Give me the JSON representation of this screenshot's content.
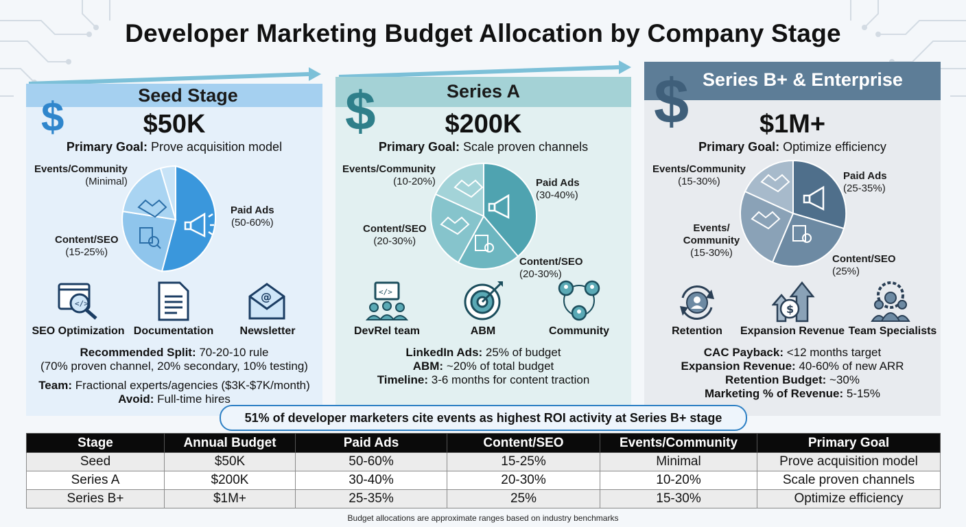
{
  "title": "Developer Marketing Budget Allocation by Company Stage",
  "colors": {
    "seed_pie": "#3a97dc",
    "seriesa_pie": "#4fa3b0",
    "seriesb_pie": "#4f6f8b",
    "callout_border": "#2c7fc4"
  },
  "panels": [
    {
      "stage": "Seed Stage",
      "budget": "$50K",
      "goal_label": "Primary Goal:",
      "goal_text": "Prove acquisition model",
      "pie_labels": [
        {
          "name": "Paid Ads",
          "range": "(50-60%)"
        },
        {
          "name": "Content/SEO",
          "range": "(15-25%)"
        },
        {
          "name": "Events/Community",
          "range": "(Minimal)"
        }
      ],
      "icons": [
        {
          "label": "SEO Optimization",
          "icon": "seo-magnifier-icon"
        },
        {
          "label": "Documentation",
          "icon": "document-icon"
        },
        {
          "label": "Newsletter",
          "icon": "envelope-icon"
        }
      ],
      "notes": [
        {
          "b": "Recommended Split:",
          "t": " 70-20-10 rule"
        },
        {
          "b": "",
          "t": "(70% proven channel, 20% secondary, 10% testing)"
        },
        {
          "b": "Team:",
          "t": " Fractional experts/agencies ($3K-$7K/month)"
        },
        {
          "b": "Avoid:",
          "t": " Full-time hires"
        }
      ]
    },
    {
      "stage": "Series A",
      "budget": "$200K",
      "goal_label": "Primary Goal:",
      "goal_text": "Scale proven channels",
      "pie_labels": [
        {
          "name": "Paid Ads",
          "range": "(30-40%)"
        },
        {
          "name": "Content/SEO",
          "range": "(20-30%)"
        },
        {
          "name": "Content/SEO",
          "range": "(20-30%)"
        },
        {
          "name": "Events/Community",
          "range": "(10-20%)"
        }
      ],
      "icons": [
        {
          "label": "DevRel team",
          "icon": "devrel-team-icon"
        },
        {
          "label": "ABM",
          "icon": "target-icon"
        },
        {
          "label": "Community",
          "icon": "community-icon"
        }
      ],
      "notes": [
        {
          "b": "LinkedIn Ads:",
          "t": " 25% of budget"
        },
        {
          "b": "ABM:",
          "t": " ~20% of total budget"
        },
        {
          "b": "Timeline:",
          "t": " 3-6 months for content traction"
        }
      ]
    },
    {
      "stage": "Series B+ & Enterprise",
      "budget": "$1M+",
      "goal_label": "Primary Goal:",
      "goal_text": "Optimize efficiency",
      "pie_labels": [
        {
          "name": "Paid Ads",
          "range": "(25-35%)"
        },
        {
          "name": "Content/SEO",
          "range": "(25%)"
        },
        {
          "name": "Events/ Community",
          "range": "(15-30%)"
        },
        {
          "name": "Events/Community",
          "range": "(15-30%)"
        }
      ],
      "icons": [
        {
          "label": "Retention",
          "icon": "retention-icon"
        },
        {
          "label": "Expansion Revenue",
          "icon": "expansion-revenue-icon"
        },
        {
          "label": "Team Specialists",
          "icon": "team-specialists-icon"
        }
      ],
      "notes": [
        {
          "b": "CAC Payback:",
          "t": " <12 months target"
        },
        {
          "b": "Expansion Revenue:",
          "t": " 40-60% of new ARR"
        },
        {
          "b": "Retention Budget:",
          "t": " ~30%"
        },
        {
          "b": "Marketing % of Revenue:",
          "t": " 5-15%"
        }
      ]
    }
  ],
  "callout": "51% of developer marketers cite events as highest ROI activity at Series B+ stage",
  "table": {
    "headers": [
      "Stage",
      "Annual Budget",
      "Paid Ads",
      "Content/SEO",
      "Events/Community",
      "Primary Goal"
    ],
    "rows": [
      [
        "Seed",
        "$50K",
        "50-60%",
        "15-25%",
        "Minimal",
        "Prove acquisition model"
      ],
      [
        "Series A",
        "$200K",
        "30-40%",
        "20-30%",
        "10-20%",
        "Scale proven channels"
      ],
      [
        "Series B+",
        "$1M+",
        "25-35%",
        "25%",
        "15-30%",
        "Optimize efficiency"
      ]
    ]
  },
  "footnote": "Budget allocations are approximate ranges based on industry benchmarks"
}
